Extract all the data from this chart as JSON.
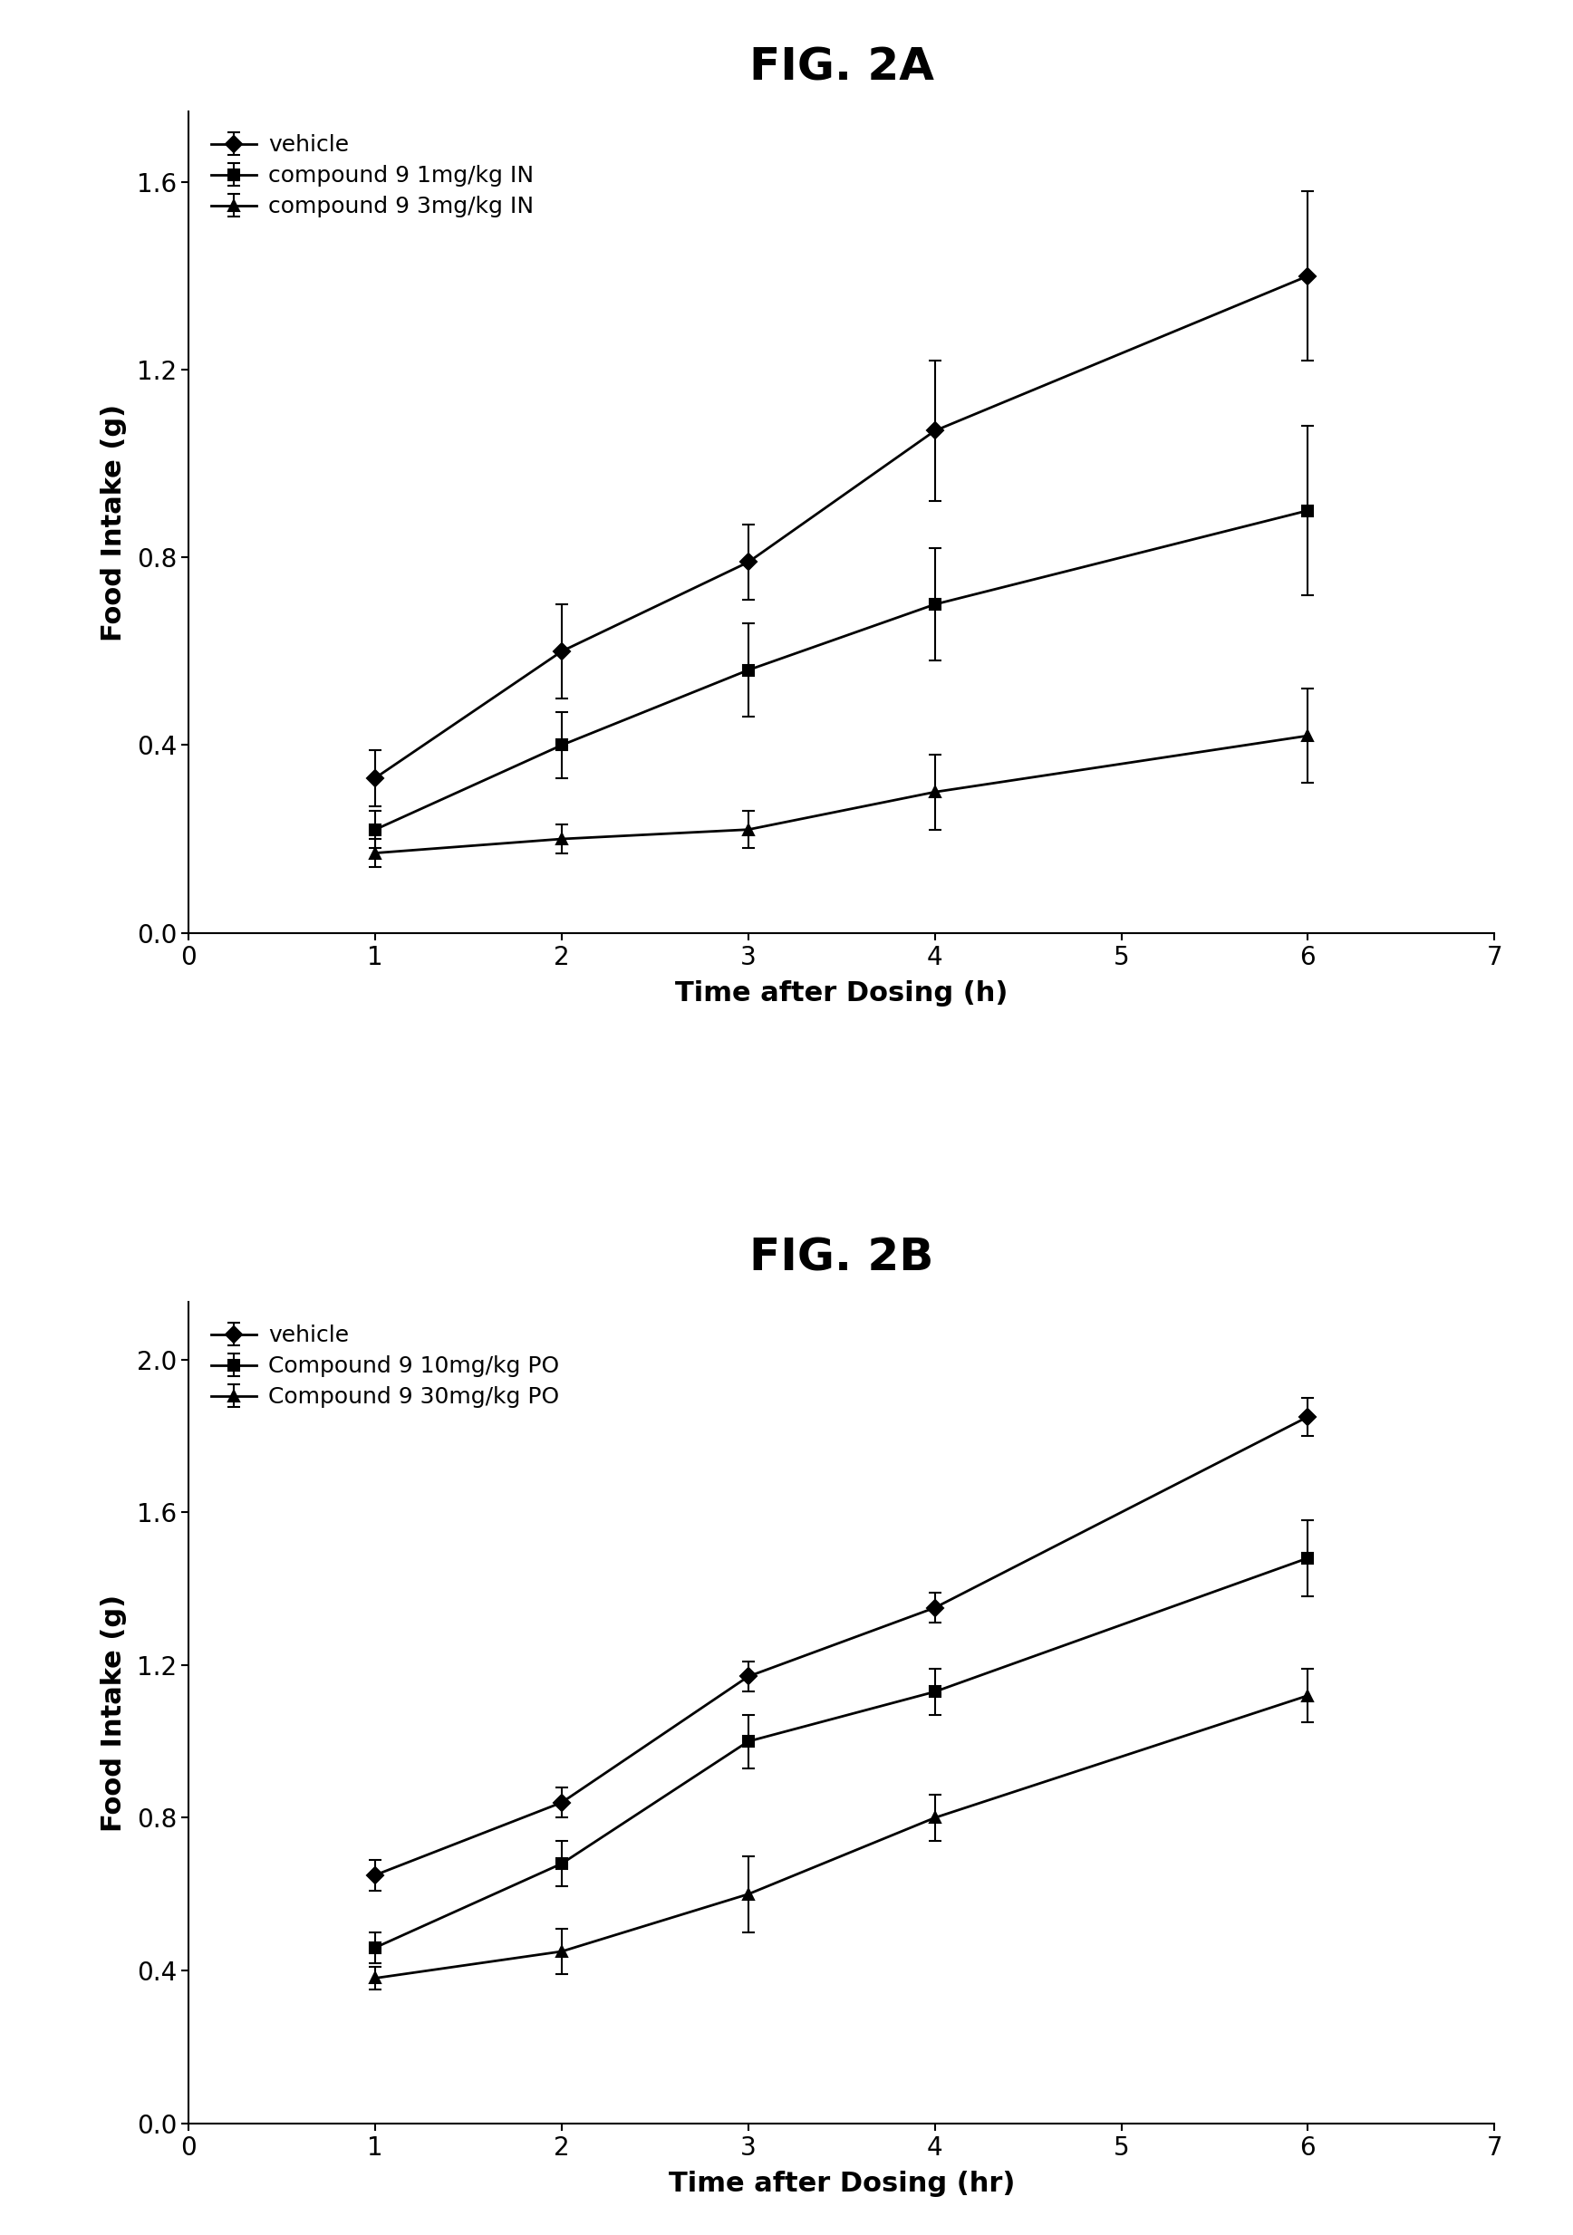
{
  "fig2a": {
    "title": "FIG. 2A",
    "xlabel": "Time after Dosing (h)",
    "ylabel": "Food Intake (g)",
    "xlim": [
      0,
      7
    ],
    "ylim": [
      0.0,
      1.75
    ],
    "yticks": [
      0.0,
      0.4,
      0.8,
      1.2,
      1.6
    ],
    "xticks": [
      0,
      1,
      2,
      3,
      4,
      5,
      6,
      7
    ],
    "series": [
      {
        "label": "vehicle",
        "x": [
          1,
          2,
          3,
          4,
          6
        ],
        "y": [
          0.33,
          0.6,
          0.79,
          1.07,
          1.4
        ],
        "yerr": [
          0.06,
          0.1,
          0.08,
          0.15,
          0.18
        ],
        "marker": "D",
        "filled": true,
        "markersize": 9,
        "linewidth": 2.0
      },
      {
        "label": "compound 9 1mg/kg IN",
        "x": [
          1,
          2,
          3,
          4,
          6
        ],
        "y": [
          0.22,
          0.4,
          0.56,
          0.7,
          0.9
        ],
        "yerr": [
          0.04,
          0.07,
          0.1,
          0.12,
          0.18
        ],
        "marker": "s",
        "filled": true,
        "markersize": 9,
        "linewidth": 2.0
      },
      {
        "label": "compound 9 3mg/kg IN",
        "x": [
          1,
          2,
          3,
          4,
          6
        ],
        "y": [
          0.17,
          0.2,
          0.22,
          0.3,
          0.42
        ],
        "yerr": [
          0.03,
          0.03,
          0.04,
          0.08,
          0.1
        ],
        "marker": "^",
        "filled": true,
        "markersize": 9,
        "linewidth": 2.0
      }
    ]
  },
  "fig2b": {
    "title": "FIG. 2B",
    "xlabel": "Time after Dosing (hr)",
    "ylabel": "Food Intake (g)",
    "xlim": [
      0,
      7
    ],
    "ylim": [
      0.0,
      2.15
    ],
    "yticks": [
      0.0,
      0.4,
      0.8,
      1.2,
      1.6,
      2.0
    ],
    "xticks": [
      0,
      1,
      2,
      3,
      4,
      5,
      6,
      7
    ],
    "series": [
      {
        "label": "vehicle",
        "x": [
          1,
          2,
          3,
          4,
          6
        ],
        "y": [
          0.65,
          0.84,
          1.17,
          1.35,
          1.85
        ],
        "yerr": [
          0.04,
          0.04,
          0.04,
          0.04,
          0.05
        ],
        "marker": "D",
        "filled": true,
        "markersize": 9,
        "linewidth": 2.0
      },
      {
        "label": "Compound 9 10mg/kg PO",
        "x": [
          1,
          2,
          3,
          4,
          6
        ],
        "y": [
          0.46,
          0.68,
          1.0,
          1.13,
          1.48
        ],
        "yerr": [
          0.04,
          0.06,
          0.07,
          0.06,
          0.1
        ],
        "marker": "s",
        "filled": true,
        "markersize": 9,
        "linewidth": 2.0
      },
      {
        "label": "Compound 9 30mg/kg PO",
        "x": [
          1,
          2,
          3,
          4,
          6
        ],
        "y": [
          0.38,
          0.45,
          0.6,
          0.8,
          1.12
        ],
        "yerr": [
          0.03,
          0.06,
          0.1,
          0.06,
          0.07
        ],
        "marker": "^",
        "filled": true,
        "markersize": 9,
        "linewidth": 2.0
      }
    ]
  },
  "background_color": "#ffffff",
  "title_fontsize": 36,
  "label_fontsize": 22,
  "tick_fontsize": 20,
  "legend_fontsize": 18
}
